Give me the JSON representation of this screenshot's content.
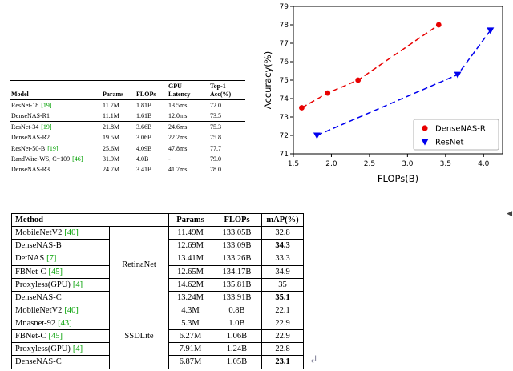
{
  "colors": {
    "citation": "#00a000",
    "densenas_series": "#e80000",
    "resnet_series": "#0000ee"
  },
  "artifacts": {
    "scroll_arrow": "◀",
    "return_mark": "↲"
  },
  "t1": {
    "headers": [
      "Model",
      "Params",
      "FLOPs",
      "GPU\nLatency",
      "Top-1\nAcc(%)"
    ],
    "rows": [
      {
        "name": "ResNet-18",
        "cite": "[19]",
        "params": "11.7M",
        "flops": "1.81B",
        "latency": "13.5ms",
        "acc": "72.0"
      },
      {
        "name": "DenseNAS-R1",
        "cite": "",
        "params": "11.1M",
        "flops": "1.61B",
        "latency": "12.0ms",
        "acc": "73.5"
      },
      {
        "name": "ResNet-34",
        "cite": "[19]",
        "params": "21.8M",
        "flops": "3.66B",
        "latency": "24.6ms",
        "acc": "75.3"
      },
      {
        "name": "DenseNAS-R2",
        "cite": "",
        "params": "19.5M",
        "flops": "3.06B",
        "latency": "22.2ms",
        "acc": "75.8"
      },
      {
        "name": "ResNet-50-B",
        "cite": "[19]",
        "params": "25.6M",
        "flops": "4.09B",
        "latency": "47.8ms",
        "acc": "77.7"
      },
      {
        "name": "RandWire-WS, C=109",
        "cite": "[46]",
        "params": "31.9M",
        "flops": "4.0B",
        "latency": "-",
        "acc": "79.0"
      },
      {
        "name": "DenseNAS-R3",
        "cite": "",
        "params": "24.7M",
        "flops": "3.41B",
        "latency": "41.7ms",
        "acc": "78.0"
      }
    ]
  },
  "t2": {
    "headers": [
      "Method",
      "Params",
      "FLOPs",
      "mAP(%)"
    ],
    "groups": [
      "RetinaNet",
      "SSDLite"
    ],
    "rows": [
      {
        "name": "MobileNetV2",
        "cite": "[40]",
        "params": "11.49M",
        "flops": "133.05B",
        "map": "32.8"
      },
      {
        "name": "DenseNAS-B",
        "cite": "",
        "params": "12.69M",
        "flops": "133.09B",
        "map": "34.3"
      },
      {
        "name": "DetNAS",
        "cite": "[7]",
        "params": "13.41M",
        "flops": "133.26B",
        "map": "33.3"
      },
      {
        "name": "FBNet-C",
        "cite": "[45]",
        "params": "12.65M",
        "flops": "134.17B",
        "map": "34.9"
      },
      {
        "name": "Proxyless(GPU)",
        "cite": "[4]",
        "params": "14.62M",
        "flops": "135.81B",
        "map": "35"
      },
      {
        "name": "DenseNAS-C",
        "cite": "",
        "params": "13.24M",
        "flops": "133.91B",
        "map": "35.1"
      },
      {
        "name": "MobileNetV2",
        "cite": "[40]",
        "params": "4.3M",
        "flops": "0.8B",
        "map": "22.1"
      },
      {
        "name": "Mnasnet-92",
        "cite": "[43]",
        "params": "5.3M",
        "flops": "1.0B",
        "map": "22.9"
      },
      {
        "name": "FBNet-C",
        "cite": "[45]",
        "params": "6.27M",
        "flops": "1.06B",
        "map": "22.9"
      },
      {
        "name": "Proxyless(GPU)",
        "cite": "[4]",
        "params": "7.91M",
        "flops": "1.24B",
        "map": "22.8"
      },
      {
        "name": "DenseNAS-C",
        "cite": "",
        "params": "6.87M",
        "flops": "1.05B",
        "map": "23.1"
      }
    ]
  },
  "chart_data": {
    "type": "line",
    "title": "",
    "xlabel": "FLOPs(B)",
    "ylabel": "Accuracy(%)",
    "xlim": [
      1.5,
      4.25
    ],
    "ylim": [
      71,
      79
    ],
    "xticks": [
      1.5,
      2.0,
      2.5,
      3.0,
      3.5,
      4.0
    ],
    "yticks": [
      71,
      72,
      73,
      74,
      75,
      76,
      77,
      78,
      79
    ],
    "grid": false,
    "legend_position": "lower right",
    "series": [
      {
        "name": "DenseNAS-R",
        "color": "#e80000",
        "marker": "circle",
        "linestyle": "dashed",
        "x": [
          1.61,
          1.95,
          2.35,
          3.41
        ],
        "y": [
          73.5,
          74.3,
          75.0,
          78.0
        ]
      },
      {
        "name": "ResNet",
        "color": "#0000ee",
        "marker": "triangle-down",
        "linestyle": "dashed",
        "x": [
          1.81,
          3.66,
          4.09
        ],
        "y": [
          72.0,
          75.3,
          77.7
        ]
      }
    ]
  }
}
